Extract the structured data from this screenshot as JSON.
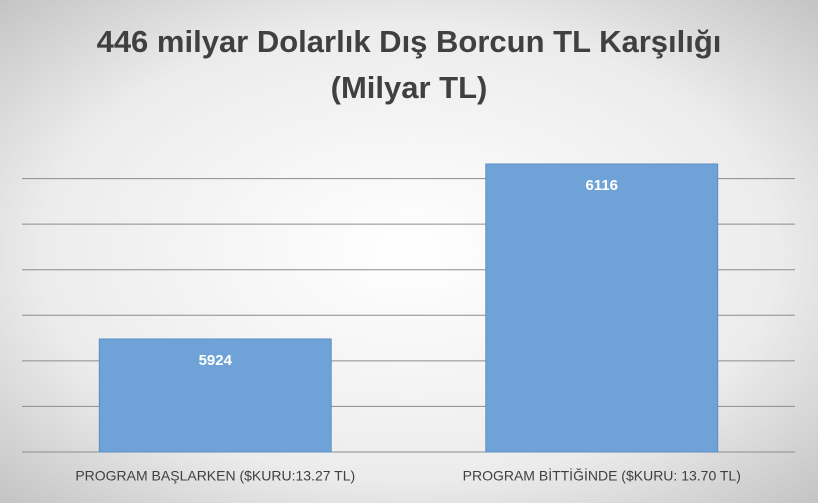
{
  "chart_data": {
    "type": "bar",
    "title": [
      "446 milyar Dolarlık Dış Borcun TL Karşılığı",
      "(Milyar TL)"
    ],
    "categories": [
      "PROGRAM BAŞLARKEN ($KURU:13.27 TL)",
      "PROGRAM BİTTİĞİNDE ($KURU: 13.70 TL)"
    ],
    "values": [
      5924,
      6116
    ],
    "color": "#6fa3d8",
    "ylim": [
      5800,
      6150
    ],
    "yticks": [
      5800,
      5850,
      5900,
      5950,
      6000,
      6050,
      6100
    ],
    "grid": true
  }
}
